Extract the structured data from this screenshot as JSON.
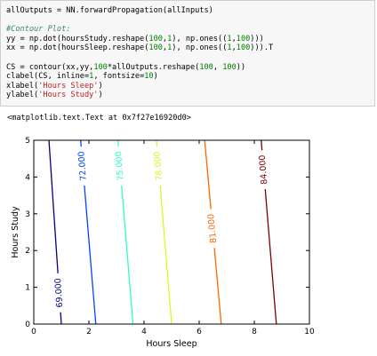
{
  "code": {
    "line1": "allOutputs = NN.forwardPropagation(allInputs)",
    "comment": "#Contour Plot:",
    "yy": {
      "pre": "yy = np.dot(hoursStudy.reshape(",
      "n1": "100",
      "c1": ",",
      "n2": "1",
      "mid": "), np.ones((",
      "n3": "1",
      "c2": ",",
      "n4": "100",
      "post": ")))"
    },
    "xx": {
      "pre": "xx = np.dot(hoursSleep.reshape(",
      "n1": "100",
      "c1": ",",
      "n2": "1",
      "mid": "), np.ones((",
      "n3": "1",
      "c2": ",",
      "n4": "100",
      "post": "))).T"
    },
    "cs": {
      "pre": "CS = contour(xx,yy,",
      "n1": "100",
      "mid": "*allOutputs.reshape(",
      "n2": "100",
      "c1": ", ",
      "n3": "100",
      "post": "))"
    },
    "clabel": {
      "pre": "clabel(CS, inline=",
      "n1": "1",
      "mid": ", fontsize=",
      "n2": "10",
      "post": ")"
    },
    "xlabel": {
      "pre": "xlabel(",
      "str": "'Hours Sleep'",
      "post": ")"
    },
    "ylabel": {
      "pre": "ylabel(",
      "str": "'Hours Study'",
      "post": ")"
    }
  },
  "output_text": "<matplotlib.text.Text at 0x7f27e16920d0>",
  "chart_data": {
    "type": "contour",
    "xlabel": "Hours Sleep",
    "ylabel": "Hours Study",
    "xlim": [
      0,
      10
    ],
    "ylim": [
      0,
      5
    ],
    "xticks": [
      0,
      2,
      4,
      6,
      8,
      10
    ],
    "yticks": [
      0,
      1,
      2,
      3,
      4,
      5
    ],
    "levels": [
      {
        "label": "69.000",
        "color": "#00007f",
        "x_at_y0": 1.0,
        "x_at_y5": 0.55,
        "label_y": 0.85
      },
      {
        "label": "72.000",
        "color": "#0044ff",
        "x_at_y0": 2.25,
        "x_at_y5": 1.7,
        "label_y": 4.3
      },
      {
        "label": "75.000",
        "color": "#2cffca",
        "x_at_y0": 3.6,
        "x_at_y5": 3.05,
        "label_y": 4.3
      },
      {
        "label": "78.000",
        "color": "#ccff23",
        "x_at_y0": 5.0,
        "x_at_y5": 4.45,
        "label_y": 4.3
      },
      {
        "label": "81.000",
        "color": "#ff6700",
        "x_at_y0": 6.8,
        "x_at_y5": 6.2,
        "label_y": 2.6
      },
      {
        "label": "84.000",
        "color": "#7f0000",
        "x_at_y0": 8.8,
        "x_at_y5": 8.25,
        "label_y": 4.2
      }
    ]
  }
}
